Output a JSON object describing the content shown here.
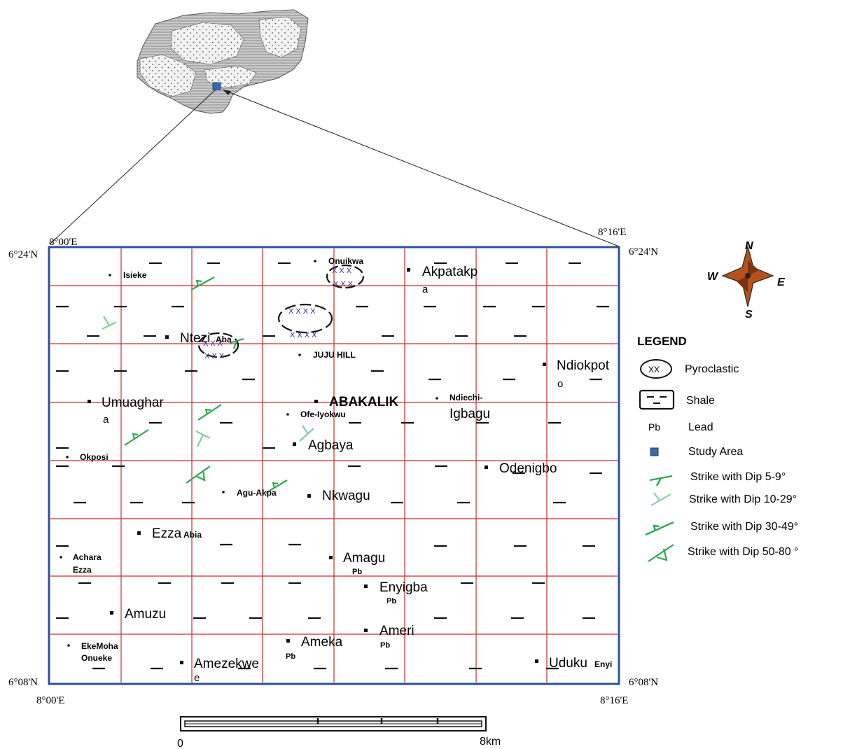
{
  "coords": {
    "top_left_lon": "8°00'E",
    "top_right_lon": "8°16'E",
    "bottom_left_lon": "8°00'E",
    "bottom_right_lon": "8°16'E",
    "top_left_lat": "6°24'N",
    "top_right_lat": "6°24'N",
    "bottom_left_lat": "6°08'N",
    "bottom_right_lat": "6°08'N"
  },
  "compass": {
    "n": "N",
    "s": "S",
    "e": "E",
    "w": "W"
  },
  "legend": {
    "title": "LEGEND",
    "pyroclastic": "Pyroclastic",
    "pyroclastic_symbol": "XX",
    "shale": "Shale",
    "lead_symbol": "Pb",
    "lead": "Lead",
    "study_area": "Study Area",
    "dip1": "Strike with Dip 5-9°",
    "dip2": "Strike with Dip 10-29°",
    "dip3": "Strike with Dip 30-49°",
    "dip4": "Strike with Dip 50-80 °"
  },
  "scale": {
    "start": "0",
    "end": "8km"
  },
  "towns": {
    "isieke": "Isieke",
    "onuikwa": "Onuikwa",
    "akpatakpa_1": "Akpatakp",
    "akpatakpa_2": "a",
    "ntezi": "Ntezi",
    "ntezi_sub": "Aba",
    "juju": "JUJU HILL",
    "ndiokpoto_1": "Ndiokpot",
    "ndiokpoto_2": "o",
    "umuaghara_1": "Umuaghar",
    "umuaghara_2": "a",
    "abakaliki": "ABAKALIK",
    "ofe": "Ofe-Iyokwu",
    "ndiechi": "Ndiechi-",
    "igbagu": "Igbagu",
    "agbaya": "Agbaya",
    "okposi": "Okposi",
    "odenigbo": "Odenigbo",
    "agu": "Agu-Akpa",
    "nkwagu": "Nkwagu",
    "ezza": "Ezza",
    "ezza_sub": "Abia",
    "achara_1": "Achara",
    "achara_2": "Ezza",
    "amagu": "Amagu",
    "enyigba": "Enyigba",
    "amuzu": "Amuzu",
    "ameri": "Ameri",
    "ameka": "Ameka",
    "ekemoha_1": "EkeMoha",
    "ekemoha_2": "Onueke",
    "amezekwe_1": "Amezekwe",
    "amezekwe_2": "e",
    "uduku": "Uduku",
    "uduku_sub": "Enyi",
    "pb": "Pb"
  },
  "colors": {
    "frame": "#2e4f9e",
    "grid": "#cc2a2a",
    "dip": "#2fa84f",
    "dip_light": "#7fd19a",
    "study_area": "#3a6ab0",
    "compass": "#b5521a"
  }
}
